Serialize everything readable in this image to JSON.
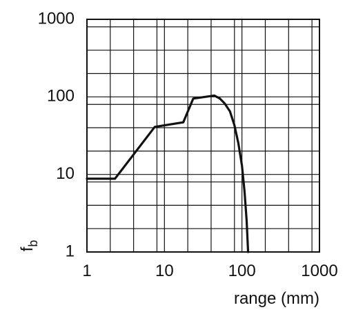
{
  "chart_data": {
    "type": "line",
    "xscale": "log",
    "yscale": "log",
    "xlim": [
      1,
      1000
    ],
    "ylim": [
      1,
      1000
    ],
    "xticks": [
      1,
      10,
      100,
      1000
    ],
    "yticks": [
      1,
      10,
      100,
      1000
    ],
    "xtick_labels": [
      "1",
      "10",
      "100",
      "1000"
    ],
    "ytick_labels": [
      "1",
      "10",
      "100",
      "1000"
    ],
    "xlabel": "range (mm)",
    "ylabel_main": "f",
    "ylabel_sub": "b",
    "grid": true,
    "series": [
      {
        "color": "#111111",
        "x": [
          1,
          2.3,
          7.5,
          17.5,
          23.5,
          44,
          52,
          60,
          70,
          80,
          90,
          100,
          108,
          115,
          120
        ],
        "y": [
          8.8,
          8.8,
          41,
          47,
          95,
          104,
          95,
          82,
          65,
          43,
          25,
          13,
          6,
          2.5,
          1
        ]
      }
    ]
  }
}
